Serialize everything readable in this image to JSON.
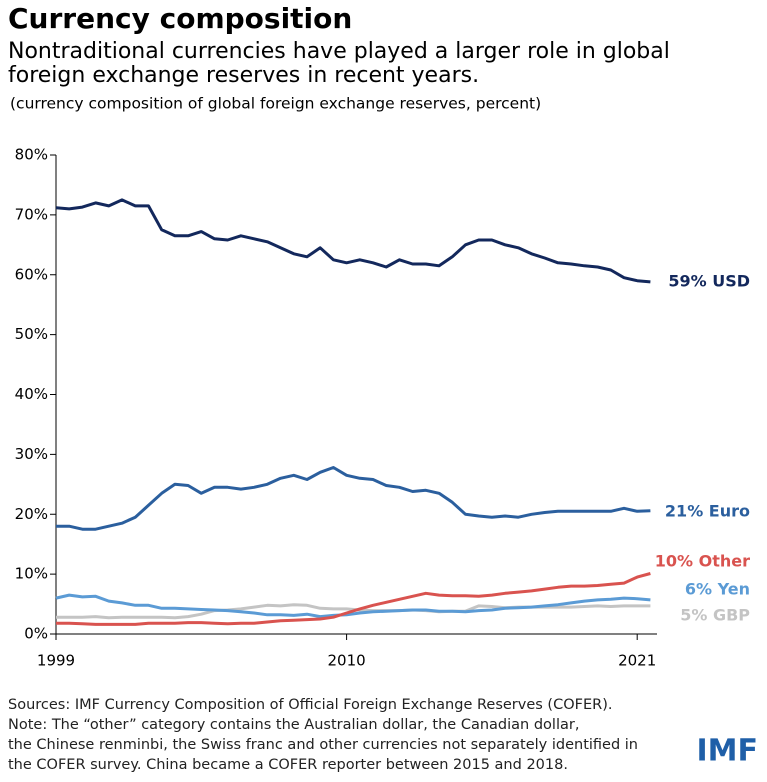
{
  "chart_data": {
    "type": "line",
    "title": "Currency composition",
    "subtitle": "Nontraditional currencies have played a larger role in global foreign exchange reserves in recent years.",
    "note": "(currency composition of global foreign exchange reserves, percent)",
    "sources": "Sources: IMF Currency Composition of Official Foreign Exchange Reserves (COFER).",
    "footnote": "Note: The “other” category contains the Australian dollar, the Canadian dollar, the Chinese renminbi, the Swiss franc and other currencies not separately identified in the COFER survey. China became a COFER reporter between 2015 and 2018.",
    "logo": "IMF",
    "x": [
      1999,
      1999.5,
      2000,
      2000.5,
      2001,
      2001.5,
      2002,
      2002.5,
      2003,
      2003.5,
      2004,
      2004.5,
      2005,
      2005.5,
      2006,
      2006.5,
      2007,
      2007.5,
      2008,
      2008.5,
      2009,
      2009.5,
      2010,
      2010.5,
      2011,
      2011.5,
      2012,
      2012.5,
      2013,
      2013.5,
      2014,
      2014.5,
      2015,
      2015.5,
      2016,
      2016.5,
      2017,
      2017.5,
      2018,
      2018.5,
      2019,
      2019.5,
      2020,
      2020.5,
      2021,
      2021.5
    ],
    "xlim": [
      1999,
      2021.75
    ],
    "xticks": [
      1999,
      2010,
      2021
    ],
    "ylim": [
      0,
      80
    ],
    "yticks": [
      {
        "value": 0,
        "label": "0%"
      },
      {
        "value": 10,
        "label": "10%"
      },
      {
        "value": 20,
        "label": "20%"
      },
      {
        "value": 30,
        "label": "30%"
      },
      {
        "value": 40,
        "label": "40%"
      },
      {
        "value": 50,
        "label": "50%"
      },
      {
        "value": 60,
        "label": "60%"
      },
      {
        "value": 70,
        "label": "70%"
      },
      {
        "value": 80,
        "label": "80%"
      }
    ],
    "series": [
      {
        "name": "59% USD",
        "color": "#13285c",
        "values": [
          71.2,
          71,
          71.3,
          72,
          71.5,
          72.5,
          71.5,
          71.5,
          67.5,
          66.5,
          66.5,
          67.2,
          66,
          65.8,
          66.5,
          66,
          65.5,
          64.5,
          63.5,
          63,
          64.5,
          62.5,
          62,
          62.5,
          62,
          61.3,
          62.5,
          61.8,
          61.8,
          61.5,
          63,
          65,
          65.8,
          65.8,
          65,
          64.5,
          63.5,
          62.8,
          62,
          61.8,
          61.5,
          61.3,
          60.8,
          59.5,
          59,
          58.8
        ]
      },
      {
        "name": "21% Euro",
        "color": "#2b5f9e",
        "values": [
          18,
          18,
          17.5,
          17.5,
          18,
          18.5,
          19.5,
          21.5,
          23.5,
          25,
          24.8,
          23.5,
          24.5,
          24.5,
          24.2,
          24.5,
          25,
          26,
          26.5,
          25.8,
          27,
          27.8,
          26.5,
          26,
          25.8,
          24.8,
          24.5,
          23.8,
          24,
          23.5,
          22,
          20,
          19.7,
          19.5,
          19.7,
          19.5,
          20,
          20.3,
          20.5,
          20.5,
          20.5,
          20.5,
          20.5,
          21,
          20.5,
          20.6
        ]
      },
      {
        "name": "10% Other",
        "color": "#d9534f",
        "values": [
          1.8,
          1.8,
          1.7,
          1.6,
          1.6,
          1.6,
          1.6,
          1.8,
          1.8,
          1.8,
          1.9,
          1.9,
          1.8,
          1.7,
          1.8,
          1.8,
          2,
          2.2,
          2.3,
          2.4,
          2.5,
          2.8,
          3.5,
          4.2,
          4.8,
          5.3,
          5.8,
          6.3,
          6.8,
          6.5,
          6.4,
          6.4,
          6.3,
          6.5,
          6.8,
          7,
          7.2,
          7.5,
          7.8,
          8,
          8,
          8.1,
          8.3,
          8.5,
          9.5,
          10.1
        ]
      },
      {
        "name": "6% Yen",
        "color": "#5b9bd5",
        "values": [
          6,
          6.5,
          6.2,
          6.3,
          5.5,
          5.2,
          4.8,
          4.8,
          4.3,
          4.3,
          4.2,
          4.1,
          4,
          3.9,
          3.7,
          3.5,
          3.2,
          3.2,
          3.1,
          3.3,
          2.9,
          3.1,
          3.2,
          3.5,
          3.7,
          3.8,
          3.9,
          4,
          4,
          3.8,
          3.8,
          3.7,
          3.9,
          4,
          4.3,
          4.4,
          4.5,
          4.7,
          4.9,
          5.2,
          5.5,
          5.7,
          5.8,
          6,
          5.9,
          5.7
        ]
      },
      {
        "name": "5% GBP",
        "color": "#c4c4c4",
        "values": [
          2.8,
          2.8,
          2.8,
          2.9,
          2.7,
          2.8,
          2.8,
          2.8,
          2.8,
          2.7,
          2.9,
          3.3,
          3.9,
          4,
          4.2,
          4.5,
          4.8,
          4.7,
          4.9,
          4.8,
          4.3,
          4.2,
          4.2,
          4,
          3.9,
          3.9,
          3.9,
          4,
          3.9,
          3.7,
          3.8,
          3.8,
          4.7,
          4.6,
          4.4,
          4.5,
          4.5,
          4.5,
          4.5,
          4.5,
          4.6,
          4.7,
          4.6,
          4.7,
          4.7,
          4.7
        ]
      }
    ]
  }
}
